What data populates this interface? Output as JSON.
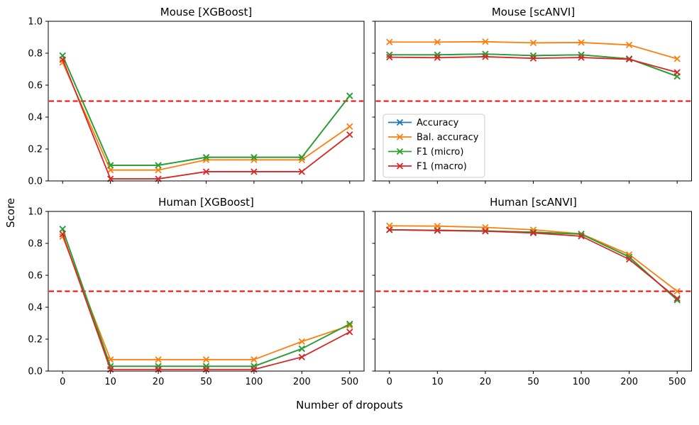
{
  "figure": {
    "xlabel": "Number of dropouts",
    "ylabel": "Score",
    "background": "#ffffff",
    "text_color": "#000000",
    "spine_color": "#000000",
    "yticks": [
      "0.0",
      "0.2",
      "0.4",
      "0.6",
      "0.8",
      "1.0"
    ],
    "categories": [
      "0",
      "10",
      "20",
      "50",
      "100",
      "200",
      "500"
    ],
    "baseline": {
      "value": 0.5,
      "color": "#ff0000",
      "style": "dashed"
    },
    "legend": {
      "subplot_index": 1,
      "location": "lower left",
      "entries": [
        "Accuracy",
        "Bal. accuracy",
        "F1 (micro)",
        "F1 (macro)"
      ]
    },
    "series_colors": {
      "Accuracy": "#1f77b4",
      "Bal. accuracy": "#ff7f0e",
      "F1 (micro)": "#2ca02c",
      "F1 (macro)": "#d62728"
    }
  },
  "chart_data": [
    {
      "type": "line",
      "title": "Mouse [XGBoost]",
      "marker": "x",
      "ylim": [
        0.0,
        1.0
      ],
      "hline": 0.5,
      "categories": [
        "0",
        "10",
        "20",
        "50",
        "100",
        "200",
        "500"
      ],
      "series": [
        {
          "name": "Accuracy",
          "color": "#1f77b4",
          "values": [
            0.785,
            0.098,
            0.098,
            0.148,
            0.148,
            0.148,
            0.533
          ]
        },
        {
          "name": "Bal. accuracy",
          "color": "#ff7f0e",
          "values": [
            0.742,
            0.068,
            0.068,
            0.132,
            0.132,
            0.132,
            0.341
          ]
        },
        {
          "name": "F1 (micro)",
          "color": "#2ca02c",
          "values": [
            0.785,
            0.098,
            0.098,
            0.148,
            0.148,
            0.148,
            0.533
          ]
        },
        {
          "name": "F1 (macro)",
          "color": "#d62728",
          "values": [
            0.76,
            0.013,
            0.013,
            0.058,
            0.058,
            0.058,
            0.29
          ]
        }
      ]
    },
    {
      "type": "line",
      "title": "Mouse [scANVI]",
      "marker": "x",
      "ylim": [
        0.0,
        1.0
      ],
      "hline": 0.5,
      "categories": [
        "0",
        "10",
        "20",
        "50",
        "100",
        "200",
        "500"
      ],
      "series": [
        {
          "name": "Accuracy",
          "color": "#1f77b4",
          "values": [
            0.79,
            0.79,
            0.795,
            0.785,
            0.79,
            0.765,
            0.655
          ]
        },
        {
          "name": "Bal. accuracy",
          "color": "#ff7f0e",
          "values": [
            0.87,
            0.87,
            0.872,
            0.865,
            0.867,
            0.852,
            0.765
          ]
        },
        {
          "name": "F1 (micro)",
          "color": "#2ca02c",
          "values": [
            0.79,
            0.79,
            0.795,
            0.785,
            0.79,
            0.765,
            0.655
          ]
        },
        {
          "name": "F1 (macro)",
          "color": "#d62728",
          "values": [
            0.775,
            0.772,
            0.778,
            0.768,
            0.773,
            0.762,
            0.68
          ]
        }
      ]
    },
    {
      "type": "line",
      "title": "Human [XGBoost]",
      "marker": "x",
      "ylim": [
        0.0,
        1.0
      ],
      "hline": 0.5,
      "categories": [
        "0",
        "10",
        "20",
        "50",
        "100",
        "200",
        "500"
      ],
      "series": [
        {
          "name": "Accuracy",
          "color": "#1f77b4",
          "values": [
            0.89,
            0.03,
            0.03,
            0.03,
            0.03,
            0.14,
            0.295
          ]
        },
        {
          "name": "Bal. accuracy",
          "color": "#ff7f0e",
          "values": [
            0.843,
            0.072,
            0.072,
            0.072,
            0.072,
            0.185,
            0.285
          ]
        },
        {
          "name": "F1 (micro)",
          "color": "#2ca02c",
          "values": [
            0.89,
            0.03,
            0.03,
            0.03,
            0.03,
            0.14,
            0.295
          ]
        },
        {
          "name": "F1 (macro)",
          "color": "#d62728",
          "values": [
            0.858,
            0.01,
            0.01,
            0.01,
            0.01,
            0.088,
            0.245
          ]
        }
      ]
    },
    {
      "type": "line",
      "title": "Human [scANVI]",
      "marker": "x",
      "ylim": [
        0.0,
        1.0
      ],
      "hline": 0.5,
      "categories": [
        "0",
        "10",
        "20",
        "50",
        "100",
        "200",
        "500"
      ],
      "series": [
        {
          "name": "Accuracy",
          "color": "#1f77b4",
          "values": [
            0.885,
            0.882,
            0.878,
            0.87,
            0.858,
            0.715,
            0.445
          ]
        },
        {
          "name": "Bal. accuracy",
          "color": "#ff7f0e",
          "values": [
            0.91,
            0.908,
            0.9,
            0.885,
            0.86,
            0.73,
            0.5
          ]
        },
        {
          "name": "F1 (micro)",
          "color": "#2ca02c",
          "values": [
            0.885,
            0.882,
            0.878,
            0.87,
            0.858,
            0.715,
            0.445
          ]
        },
        {
          "name": "F1 (macro)",
          "color": "#d62728",
          "values": [
            0.885,
            0.88,
            0.876,
            0.865,
            0.845,
            0.7,
            0.455
          ]
        }
      ]
    }
  ]
}
